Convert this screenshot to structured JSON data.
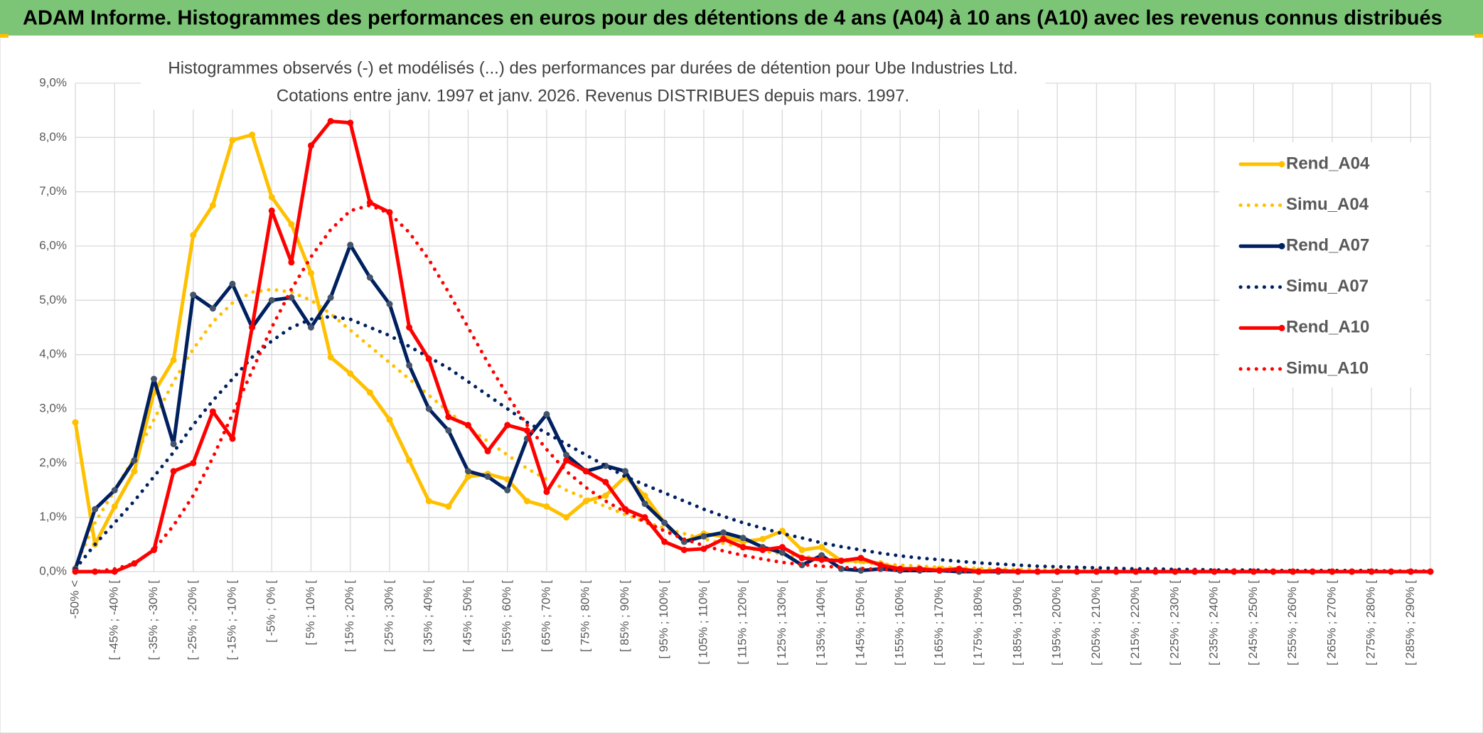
{
  "chart_data": {
    "type": "line",
    "title": "ADAM Informe. Histogrammes des performances en euros pour des détentions de 4 ans (A04) à 10 ans (A10) avec les revenus connus distribués",
    "subtitle": [
      "Histogrammes observés (-) et modélisés (...) des performances par durées de détention pour Ube Industries Ltd.",
      "Cotations entre janv. 1997 et janv. 2026. Revenus DISTRIBUES depuis mars. 1997."
    ],
    "categories": [
      "-50% <",
      null,
      "[ -45% ; -40% [",
      null,
      "[ -35% ; -30% [",
      null,
      "[ -25% ; -20% [",
      null,
      "[ -15% ; -10% [",
      null,
      "[ -5% ; 0% [",
      null,
      "[ 5% ; 10% [",
      null,
      "[ 15% ; 20% [",
      null,
      "[ 25% ; 30% [",
      null,
      "[ 35% ; 40% [",
      null,
      "[ 45% ; 50% [",
      null,
      "[ 55% ; 60% [",
      null,
      "[ 65% ; 70% [",
      null,
      "[ 75% ; 80% [",
      null,
      "[ 85% ; 90% [",
      null,
      "[ 95% ; 100% [",
      null,
      "[ 105% ; 110% [",
      null,
      "[ 115% ; 120% [",
      null,
      "[ 125% ; 130% [",
      null,
      "[ 135% ; 140% [",
      null,
      "[ 145% ; 150% [",
      null,
      "[ 155% ; 160% [",
      null,
      "[ 165% ; 170% [",
      null,
      "[ 175% ; 180% [",
      null,
      "[ 185% ; 190% [",
      null,
      "[ 195% ; 200% [",
      null,
      "[ 205% ; 210% [",
      null,
      "[ 215% ; 220% [",
      null,
      "[ 225% ; 230% [",
      null,
      "[ 235% ; 240% [",
      null,
      "[ 245% ; 250% [",
      null,
      "[ 255% ; 260% [",
      null,
      "[ 265% ; 270% [",
      null,
      "[ 275% ; 280% [",
      null,
      "[ 285% ; 290% [",
      null
    ],
    "series": [
      {
        "name": "Rend_A04",
        "color": "#FFC000",
        "dash": false,
        "values": [
          2.75,
          0.5,
          1.2,
          1.85,
          3.3,
          3.9,
          6.2,
          6.75,
          7.95,
          8.05,
          6.9,
          6.4,
          5.5,
          3.95,
          3.65,
          3.3,
          2.8,
          2.05,
          1.3,
          1.2,
          1.75,
          1.8,
          1.7,
          1.3,
          1.2,
          1.0,
          1.3,
          1.4,
          1.75,
          1.4,
          0.9,
          0.55,
          0.7,
          0.65,
          0.55,
          0.6,
          0.75,
          0.4,
          0.45,
          0.2,
          0.2,
          0.15,
          0.05,
          0.05,
          0.05,
          0.05,
          0.02,
          0,
          0,
          0,
          0,
          0,
          0,
          0,
          0,
          0,
          0,
          0,
          0,
          0,
          0,
          0,
          0,
          0,
          0,
          0,
          0,
          0,
          0,
          0
        ]
      },
      {
        "name": "Simu_A04",
        "color": "#FFC000",
        "dash": true,
        "values": [
          0.1,
          0.9,
          1.5,
          2.1,
          2.8,
          3.5,
          4.1,
          4.6,
          4.95,
          5.15,
          5.2,
          5.15,
          5.0,
          4.75,
          4.45,
          4.15,
          3.85,
          3.55,
          3.25,
          2.95,
          2.65,
          2.4,
          2.15,
          1.9,
          1.7,
          1.5,
          1.35,
          1.2,
          1.05,
          0.92,
          0.8,
          0.7,
          0.6,
          0.52,
          0.45,
          0.38,
          0.33,
          0.28,
          0.24,
          0.2,
          0.17,
          0.14,
          0.12,
          0.1,
          0.08,
          0.07,
          0.06,
          0.05,
          0.04,
          0.03,
          0.03,
          0.02,
          0.02,
          0.02,
          0.02,
          0.01,
          0.01,
          0.01,
          0.01,
          0.01,
          0.01,
          0.01,
          0.01,
          0.01,
          0.01,
          0.01,
          0.01,
          0.01,
          0.01,
          0.01
        ]
      },
      {
        "name": "Rend_A07",
        "color": "#002060",
        "dash": false,
        "values": [
          0.05,
          1.15,
          1.5,
          2.05,
          3.55,
          2.35,
          5.1,
          4.85,
          5.3,
          4.5,
          5.0,
          5.05,
          4.5,
          5.05,
          6.02,
          5.42,
          4.93,
          3.8,
          3.0,
          2.6,
          1.85,
          1.75,
          1.5,
          2.45,
          2.9,
          2.15,
          1.85,
          1.95,
          1.85,
          1.25,
          0.9,
          0.55,
          0.65,
          0.72,
          0.62,
          0.45,
          0.35,
          0.12,
          0.3,
          0.05,
          0.02,
          0.05,
          0.02,
          0.02,
          0.02,
          0,
          0,
          0,
          0,
          0,
          0,
          0,
          0,
          0,
          0,
          0,
          0,
          0,
          0,
          0,
          0,
          0,
          0,
          0,
          0,
          0,
          0,
          0,
          0,
          0
        ]
      },
      {
        "name": "Simu_A07",
        "color": "#002060",
        "dash": true,
        "values": [
          0.05,
          0.5,
          0.9,
          1.3,
          1.75,
          2.2,
          2.7,
          3.15,
          3.55,
          3.95,
          4.25,
          4.5,
          4.65,
          4.7,
          4.65,
          4.5,
          4.35,
          4.15,
          3.95,
          3.75,
          3.5,
          3.25,
          3.0,
          2.75,
          2.55,
          2.35,
          2.15,
          1.95,
          1.75,
          1.6,
          1.45,
          1.3,
          1.15,
          1.02,
          0.9,
          0.8,
          0.7,
          0.62,
          0.53,
          0.46,
          0.4,
          0.34,
          0.29,
          0.25,
          0.22,
          0.19,
          0.16,
          0.14,
          0.12,
          0.1,
          0.09,
          0.08,
          0.07,
          0.06,
          0.05,
          0.05,
          0.04,
          0.04,
          0.03,
          0.03,
          0.03,
          0.02,
          0.02,
          0.02,
          0.02,
          0.02,
          0.02,
          0.01,
          0.01,
          0.01
        ]
      },
      {
        "name": "Rend_A10",
        "color": "#FF0000",
        "dash": false,
        "values": [
          0,
          0,
          0,
          0.15,
          0.4,
          1.85,
          2.0,
          2.95,
          2.45,
          4.5,
          6.65,
          5.7,
          7.85,
          8.3,
          8.27,
          6.8,
          6.62,
          4.5,
          3.92,
          2.85,
          2.7,
          2.22,
          2.7,
          2.6,
          1.47,
          2.05,
          1.85,
          1.65,
          1.15,
          1.0,
          0.55,
          0.4,
          0.42,
          0.6,
          0.45,
          0.4,
          0.45,
          0.25,
          0.22,
          0.2,
          0.25,
          0.12,
          0.05,
          0.05,
          0.02,
          0.05,
          0,
          0.02,
          0,
          0,
          0,
          0,
          0,
          0,
          0,
          0,
          0,
          0,
          0,
          0,
          0,
          0,
          0,
          0,
          0,
          0,
          0,
          0,
          0,
          0
        ]
      },
      {
        "name": "Simu_A10",
        "color": "#FF0000",
        "dash": true,
        "values": [
          0,
          0,
          0.05,
          0.15,
          0.4,
          0.85,
          1.4,
          2.1,
          2.9,
          3.7,
          4.5,
          5.2,
          5.8,
          6.3,
          6.65,
          6.75,
          6.6,
          6.25,
          5.75,
          5.15,
          4.5,
          3.85,
          3.25,
          2.7,
          2.25,
          1.85,
          1.55,
          1.3,
          1.1,
          0.92,
          0.75,
          0.6,
          0.48,
          0.38,
          0.3,
          0.23,
          0.17,
          0.13,
          0.1,
          0.08,
          0.06,
          0.04,
          0.03,
          0.02,
          0.02,
          0.01,
          0,
          0,
          0,
          0,
          0,
          0,
          0,
          0,
          0,
          0,
          0,
          0,
          0,
          0,
          0,
          0,
          0,
          0,
          0,
          0,
          0,
          0,
          0,
          0
        ]
      }
    ],
    "ylim": [
      0,
      9
    ],
    "yticks": [
      {
        "value": 0,
        "label": "0,0%"
      },
      {
        "value": 1,
        "label": "1,0%"
      },
      {
        "value": 2,
        "label": "2,0%"
      },
      {
        "value": 3,
        "label": "3,0%"
      },
      {
        "value": 4,
        "label": "4,0%"
      },
      {
        "value": 5,
        "label": "5,0%"
      },
      {
        "value": 6,
        "label": "6,0%"
      },
      {
        "value": 7,
        "label": "7,0%"
      },
      {
        "value": 8,
        "label": "8,0%"
      },
      {
        "value": 9,
        "label": "9,0%"
      }
    ],
    "grid": true,
    "legend": "right"
  }
}
